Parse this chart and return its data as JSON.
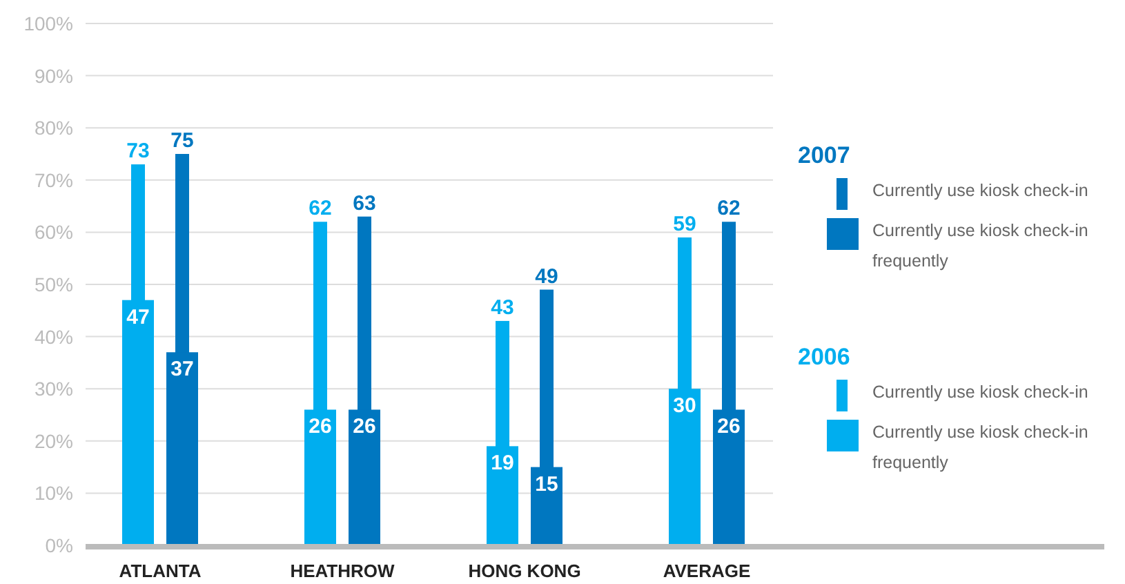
{
  "chart_data": {
    "type": "bar",
    "categories": [
      "ATLANTA",
      "HEATHROW",
      "HONG KONG",
      "AVERAGE"
    ],
    "annotations": [
      "2006",
      "2007"
    ],
    "series": [
      {
        "name": "Currently use kiosk check-in",
        "color": "#00aeef",
        "values": [
          73,
          62,
          43,
          59
        ]
      },
      {
        "name": "Currently use kiosk check-in frequently",
        "color": "#00aeef",
        "values": [
          47,
          26,
          19,
          30
        ]
      },
      {
        "name": "Currently use kiosk check-in",
        "color": "#0077c0",
        "values": [
          75,
          63,
          49,
          62
        ]
      },
      {
        "name": "Currently use kiosk check-in frequently",
        "color": "#0077c0",
        "values": [
          37,
          26,
          15,
          26
        ]
      }
    ],
    "ylim": [
      0,
      100
    ],
    "yticks": [
      {
        "value": 0,
        "label": "0%"
      },
      {
        "value": 10,
        "label": "10%"
      },
      {
        "value": 20,
        "label": "20%"
      },
      {
        "value": 30,
        "label": "30%"
      },
      {
        "value": 40,
        "label": "40%"
      },
      {
        "value": 50,
        "label": "50%"
      },
      {
        "value": 60,
        "label": "60%"
      },
      {
        "value": 70,
        "label": "70%"
      },
      {
        "value": 80,
        "label": "80%"
      },
      {
        "value": 90,
        "label": "90%"
      },
      {
        "value": 100,
        "label": "100%"
      }
    ],
    "grid": "y",
    "data_labels": true,
    "legend": "right"
  }
}
